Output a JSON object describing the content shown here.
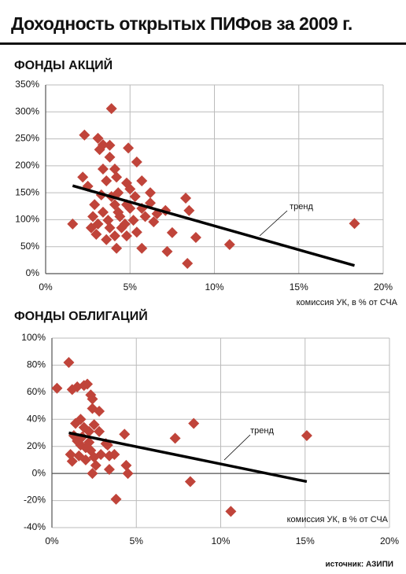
{
  "title": "Доходность открытых ПИФов за 2009 г.",
  "source": "источник: АЗИПИ",
  "chart_data": [
    {
      "type": "scatter",
      "title": "ФОНДЫ АКЦИЙ",
      "x_label": "комиссия УК, в % от СЧА",
      "color": "#c0443a",
      "grid": true,
      "xlim": [
        0,
        20
      ],
      "ylim": [
        0,
        350
      ],
      "xticks": [
        {
          "value": 0,
          "label": "0%"
        },
        {
          "value": 5,
          "label": "5%"
        },
        {
          "value": 10,
          "label": "10%"
        },
        {
          "value": 15,
          "label": "15%"
        },
        {
          "value": 20,
          "label": "20%"
        }
      ],
      "yticks": [
        {
          "value": 0,
          "label": "0%"
        },
        {
          "value": 50,
          "label": "50%"
        },
        {
          "value": 100,
          "label": "100%"
        },
        {
          "value": 150,
          "label": "150%"
        },
        {
          "value": 200,
          "label": "200%"
        },
        {
          "value": 250,
          "label": "250%"
        },
        {
          "value": 300,
          "label": "300%"
        },
        {
          "value": 350,
          "label": "350%"
        }
      ],
      "points": {
        "x": [
          3.9,
          2.3,
          3.1,
          3.4,
          3.2,
          3.8,
          4.9,
          5.4,
          2.2,
          2.5,
          4.1,
          3.8,
          4.3,
          5.7,
          6.2,
          8.3,
          1.6,
          8.5,
          7.1,
          7.5,
          8.9,
          7.2,
          8.4,
          10.9,
          18.3,
          3.0,
          3.6,
          4.2,
          5.7,
          4.8,
          2.9,
          3.4,
          3.7,
          4.3,
          4.8,
          5.2,
          4.1,
          4.5,
          3.8,
          3.1,
          2.8,
          5.0,
          5.3,
          5.7,
          6.2,
          6.4,
          3.6,
          3.3,
          4.2,
          4.7,
          5.4,
          3.4,
          3.9,
          4.4,
          5.0,
          5.9,
          6.6,
          2.7,
          4.1,
          4.8
        ],
        "y": [
          306,
          257,
          251,
          239,
          230,
          238,
          233,
          207,
          179,
          162,
          194,
          216,
          150,
          172,
          150,
          140,
          92,
          117,
          117,
          76,
          67,
          41,
          19,
          54,
          93,
          73,
          63,
          47,
          47,
          70,
          128,
          114,
          99,
          114,
          128,
          99,
          128,
          85,
          85,
          92,
          106,
          157,
          143,
          121,
          131,
          96,
          172,
          146,
          179,
          92,
          77,
          194,
          143,
          106,
          121,
          106,
          111,
          85,
          70,
          168
        ]
      },
      "trend": {
        "label": "тренд",
        "x": [
          1.6,
          18.3
        ],
        "y": [
          163,
          15
        ]
      }
    },
    {
      "type": "scatter",
      "title": "ФОНДЫ ОБЛИГАЦИЙ",
      "x_label": "комиссия УК, в % от СЧА",
      "color": "#c0443a",
      "grid": true,
      "xlim": [
        0,
        20
      ],
      "ylim": [
        -40,
        100
      ],
      "xticks": [
        {
          "value": 0,
          "label": "0%"
        },
        {
          "value": 5,
          "label": "5%"
        },
        {
          "value": 10,
          "label": "10%"
        },
        {
          "value": 15,
          "label": "15%"
        },
        {
          "value": 20,
          "label": "20%"
        }
      ],
      "yticks": [
        {
          "value": -40,
          "label": "-40%"
        },
        {
          "value": -20,
          "label": "-20%"
        },
        {
          "value": 0,
          "label": "0%"
        },
        {
          "value": 20,
          "label": "20%"
        },
        {
          "value": 40,
          "label": "40%"
        },
        {
          "value": 60,
          "label": "60%"
        },
        {
          "value": 80,
          "label": "80%"
        },
        {
          "value": 100,
          "label": "100%"
        }
      ],
      "points": {
        "x": [
          1.0,
          0.3,
          1.2,
          1.5,
          1.9,
          2.1,
          2.3,
          2.4,
          2.4,
          2.8,
          1.4,
          1.7,
          1.9,
          2.2,
          2.5,
          2.8,
          1.3,
          1.5,
          1.7,
          2.0,
          2.3,
          1.6,
          1.1,
          1.2,
          2.0,
          2.5,
          2.9,
          3.2,
          3.4,
          3.7,
          3.3,
          2.6,
          2.4,
          3.4,
          3.8,
          4.3,
          4.4,
          4.5,
          7.3,
          8.4,
          8.2,
          10.6,
          15.1,
          1.8,
          2.2
        ],
        "y": [
          82,
          63,
          62,
          64,
          65,
          66,
          58,
          55,
          48,
          46,
          37,
          40,
          34,
          31,
          36,
          31,
          28,
          24,
          21,
          19,
          17,
          13,
          14,
          9,
          10,
          12,
          14,
          22,
          13,
          14,
          21,
          6,
          0,
          3,
          -19,
          29,
          6,
          0,
          26,
          37,
          -6,
          -28,
          28,
          27,
          23
        ]
      },
      "trend": {
        "label": "тренд",
        "x": [
          1.0,
          15.1
        ],
        "y": [
          30,
          -6
        ]
      }
    }
  ]
}
